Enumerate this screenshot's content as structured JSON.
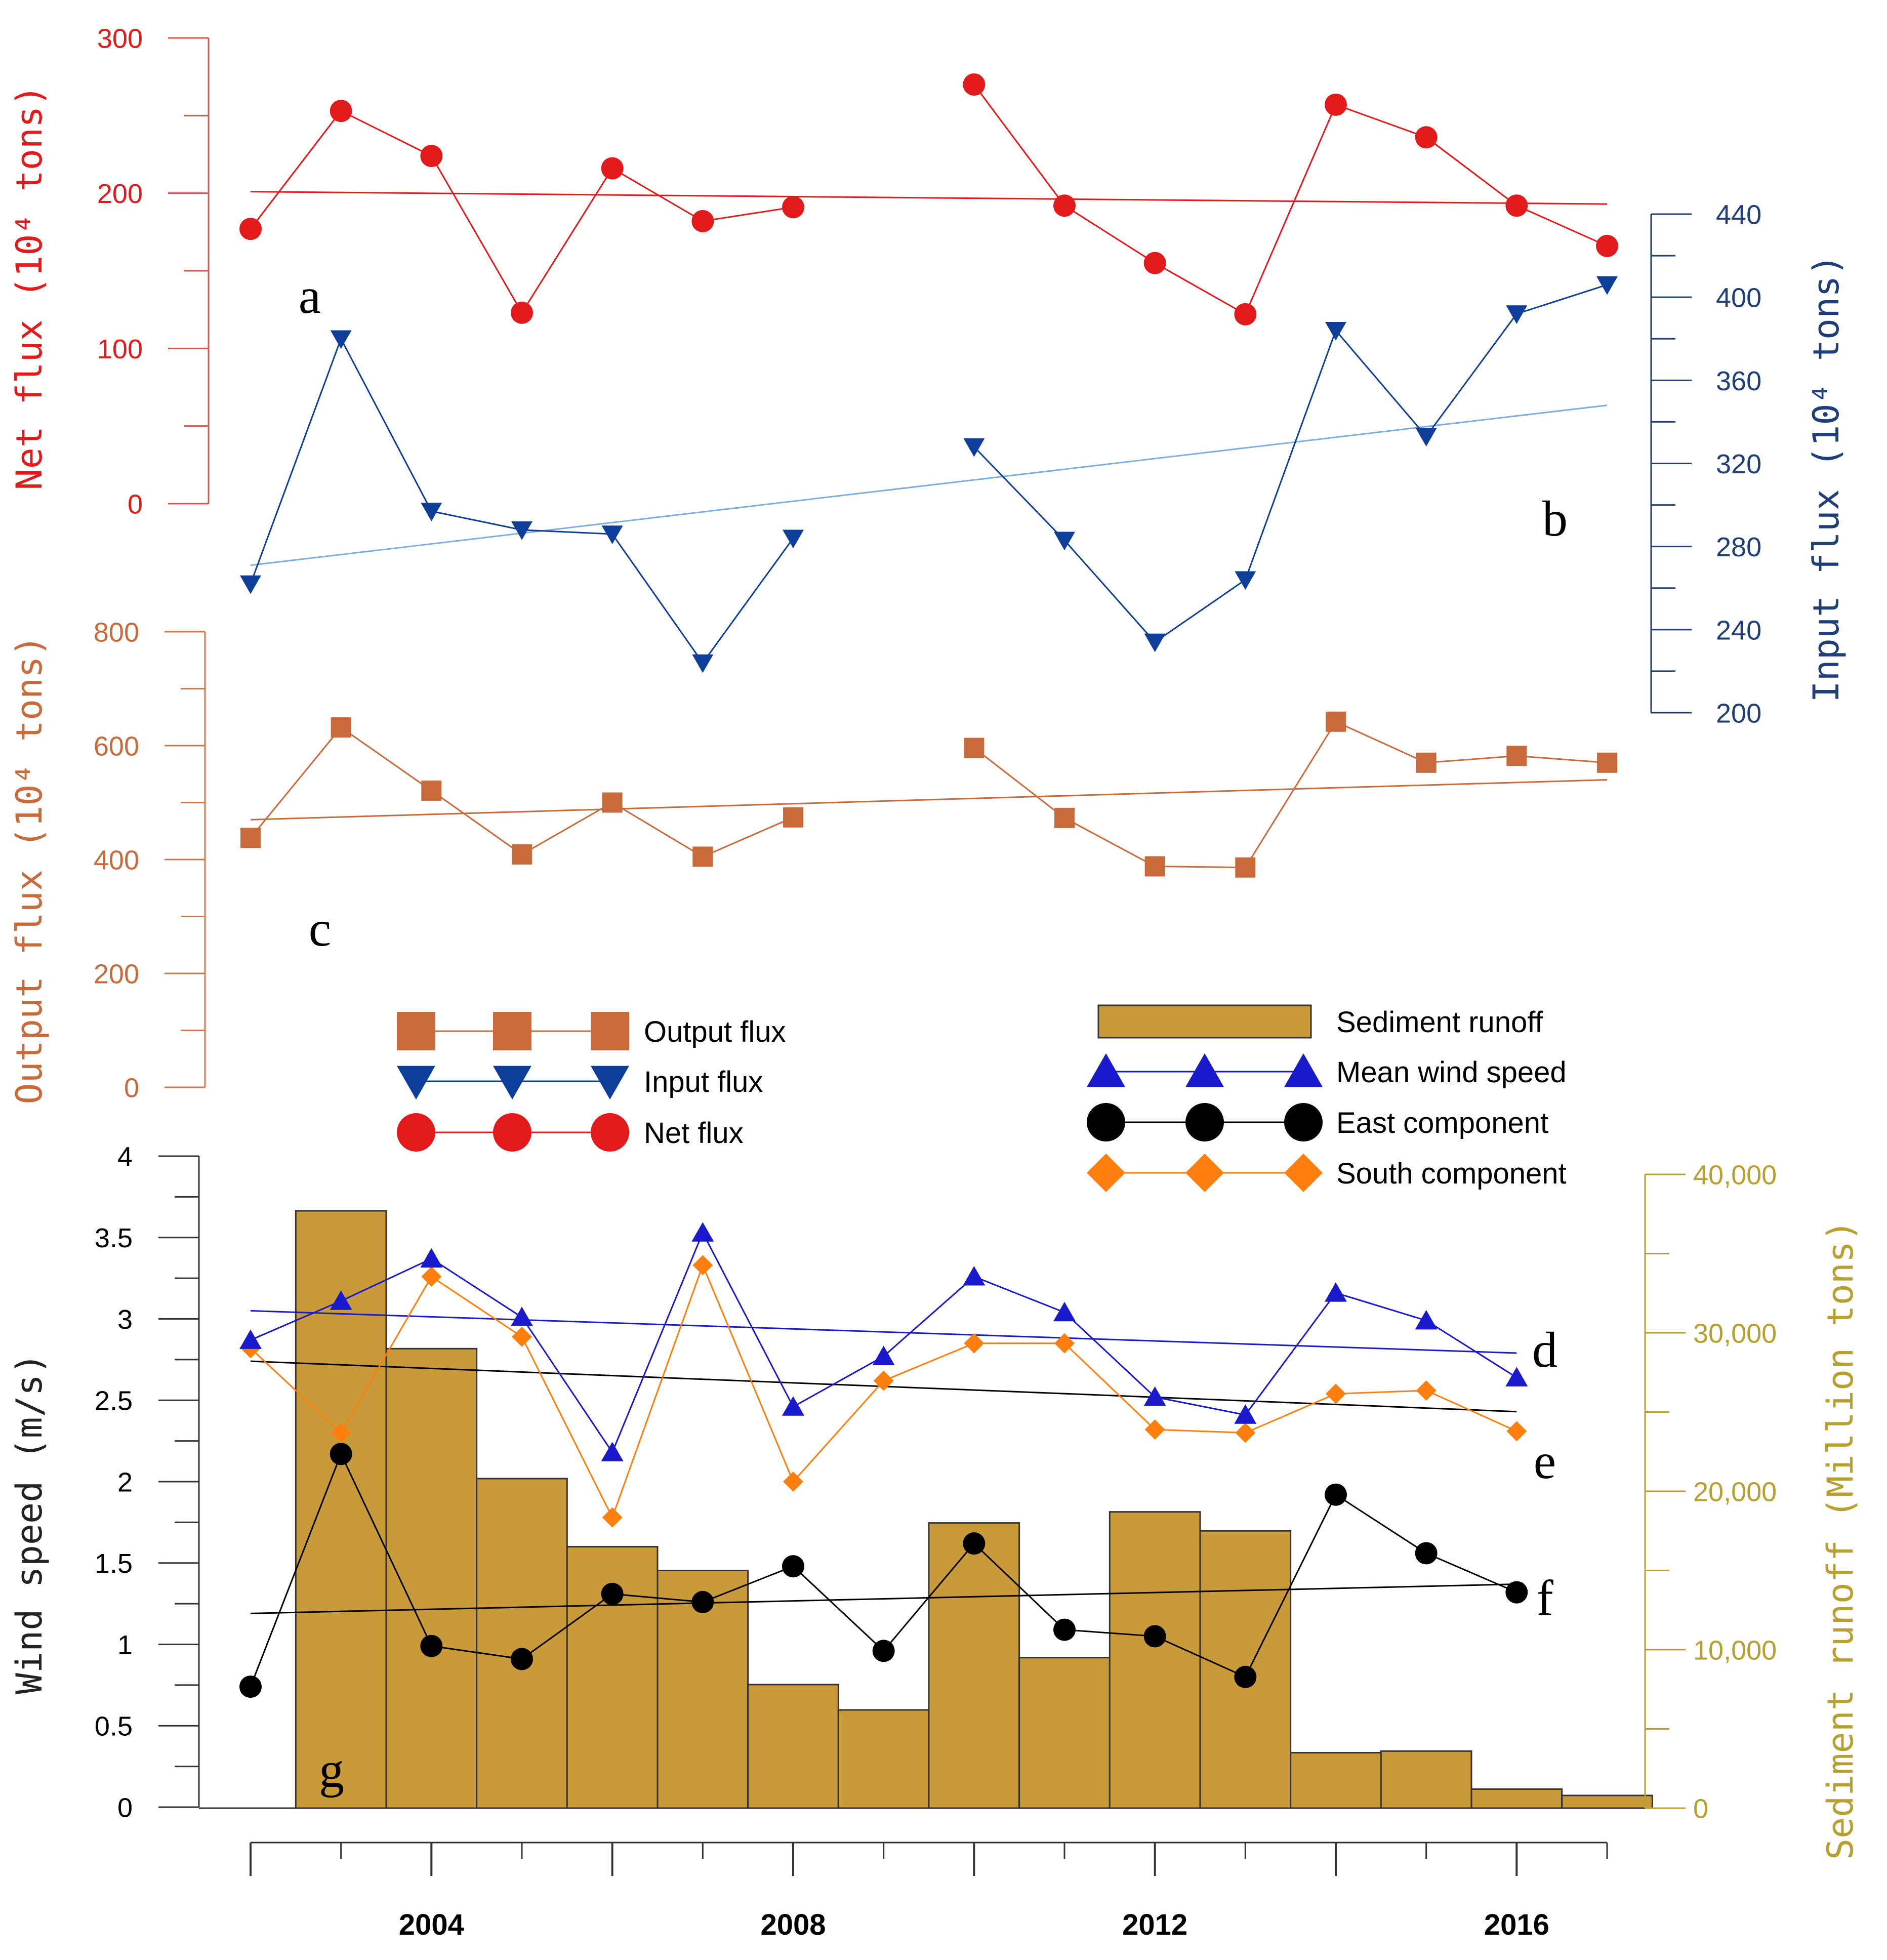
{
  "chart_data": {
    "type": "line",
    "years": [
      2002,
      2003,
      2004,
      2005,
      2006,
      2007,
      2008,
      2009,
      2010,
      2011,
      2012,
      2013,
      2014,
      2015,
      2016,
      2017
    ],
    "xlim": [
      2002,
      2017
    ],
    "x_tick_labels": [
      "2004",
      "2008",
      "2012",
      "2016"
    ],
    "x_major_ticks": [
      2002,
      2004,
      2006,
      2008,
      2010,
      2012,
      2014,
      2016
    ],
    "colors": {
      "net": "#e31a1c",
      "net_axis": "#d9534f",
      "input": "#0d3f9a",
      "input_axis": "#1f3f7a",
      "input_trend": "#7eaee0",
      "output": "#c86a3a",
      "output_axis": "#c87a50",
      "wind": "#1a1acc",
      "east": "#000000",
      "south": "#ff7f0e",
      "sediment": "#c99a3a",
      "sediment_edge": "#333333",
      "sediment_axis": "#b8a030"
    },
    "panels": {
      "net": {
        "label": "a",
        "ylabel": "Net flux (10⁴ tons)",
        "ylim": [
          0,
          300
        ],
        "tick_labels": [
          "0",
          "100",
          "200",
          "300"
        ],
        "tick_values": [
          0,
          100,
          200,
          300
        ],
        "series": [
          {
            "name": "Net flux",
            "points": [
              [
                2002,
                177
              ],
              [
                2003,
                253
              ],
              [
                2004,
                224
              ],
              [
                2005,
                123
              ],
              [
                2006,
                216
              ],
              [
                2007,
                182
              ],
              [
                2008,
                191
              ]
            ]
          },
          {
            "name": "Net flux",
            "points": [
              [
                2010,
                270
              ],
              [
                2011,
                192
              ],
              [
                2012,
                155
              ],
              [
                2013,
                122
              ],
              [
                2014,
                257
              ],
              [
                2015,
                236
              ],
              [
                2016,
                192
              ],
              [
                2017,
                166
              ]
            ]
          }
        ],
        "trend": [
          [
            2002,
            201
          ],
          [
            2017,
            193
          ]
        ]
      },
      "input": {
        "label": "b",
        "ylabel": "Input flux (10⁴ tons)",
        "ylim": [
          200,
          440
        ],
        "tick_labels": [
          "200",
          "240",
          "280",
          "320",
          "360",
          "400",
          "440"
        ],
        "tick_values": [
          200,
          240,
          280,
          320,
          360,
          400,
          440
        ],
        "series": [
          {
            "name": "Input flux",
            "points": [
              [
                2002,
                262
              ],
              [
                2003,
                380
              ],
              [
                2004,
                297
              ],
              [
                2005,
                288
              ],
              [
                2006,
                286
              ],
              [
                2007,
                224
              ],
              [
                2008,
                284
              ]
            ]
          },
          {
            "name": "Input flux",
            "points": [
              [
                2010,
                328
              ],
              [
                2011,
                283
              ],
              [
                2012,
                234
              ],
              [
                2013,
                264
              ],
              [
                2014,
                384
              ],
              [
                2015,
                333
              ],
              [
                2016,
                392
              ],
              [
                2017,
                406
              ]
            ]
          }
        ],
        "trend": [
          [
            2002,
            271
          ],
          [
            2017,
            348
          ]
        ]
      },
      "output": {
        "label": "c",
        "ylabel": "Output flux (10⁴ tons)",
        "ylim": [
          0,
          800
        ],
        "tick_labels": [
          "0",
          "200",
          "400",
          "600",
          "800"
        ],
        "tick_values": [
          0,
          200,
          400,
          600,
          800
        ],
        "series": [
          {
            "name": "Output flux",
            "points": [
              [
                2002,
                438
              ],
              [
                2003,
                632
              ],
              [
                2004,
                521
              ],
              [
                2005,
                409
              ],
              [
                2006,
                500
              ],
              [
                2007,
                405
              ],
              [
                2008,
                474
              ]
            ]
          },
          {
            "name": "Output flux",
            "points": [
              [
                2010,
                596
              ],
              [
                2011,
                473
              ],
              [
                2012,
                388
              ],
              [
                2013,
                386
              ],
              [
                2014,
                642
              ],
              [
                2015,
                570
              ],
              [
                2016,
                582
              ],
              [
                2017,
                570
              ]
            ]
          }
        ],
        "trend": [
          [
            2002,
            470
          ],
          [
            2017,
            540
          ]
        ]
      },
      "wind": {
        "ylabel": "Wind speed (m/s)",
        "ylim": [
          0,
          4
        ],
        "tick_labels": [
          "0",
          "0.5",
          "1",
          "1.5",
          "2",
          "2.5",
          "3",
          "3.5",
          "4"
        ],
        "tick_values": [
          0,
          0.5,
          1,
          1.5,
          2,
          2.5,
          3,
          3.5,
          4
        ],
        "series": [
          {
            "name": "Mean wind speed",
            "label": "d",
            "points": [
              [
                2002,
                2.87
              ],
              [
                2003,
                3.11
              ],
              [
                2004,
                3.37
              ],
              [
                2005,
                3.01
              ],
              [
                2006,
                2.18
              ],
              [
                2007,
                3.53
              ],
              [
                2008,
                2.46
              ],
              [
                2009,
                2.77
              ],
              [
                2010,
                3.26
              ],
              [
                2011,
                3.04
              ],
              [
                2012,
                2.52
              ],
              [
                2013,
                2.41
              ],
              [
                2014,
                3.16
              ],
              [
                2015,
                2.99
              ],
              [
                2016,
                2.64
              ]
            ],
            "trend": [
              [
                2002,
                3.05
              ],
              [
                2016,
                2.79
              ]
            ]
          },
          {
            "name": "South component",
            "label": "e",
            "points": [
              [
                2002,
                2.82
              ],
              [
                2003,
                2.3
              ],
              [
                2004,
                3.26
              ],
              [
                2005,
                2.89
              ],
              [
                2006,
                1.78
              ],
              [
                2007,
                3.33
              ],
              [
                2008,
                2.0
              ],
              [
                2009,
                2.62
              ],
              [
                2010,
                2.85
              ],
              [
                2011,
                2.85
              ],
              [
                2012,
                2.32
              ],
              [
                2013,
                2.3
              ],
              [
                2014,
                2.54
              ],
              [
                2015,
                2.56
              ],
              [
                2016,
                2.31
              ]
            ]
          },
          {
            "name": "East component",
            "label": "f",
            "points": [
              [
                2002,
                0.74
              ],
              [
                2003,
                2.17
              ],
              [
                2004,
                0.99
              ],
              [
                2005,
                0.91
              ],
              [
                2006,
                1.31
              ],
              [
                2007,
                1.26
              ],
              [
                2008,
                1.48
              ],
              [
                2009,
                0.96
              ],
              [
                2010,
                1.62
              ],
              [
                2011,
                1.09
              ],
              [
                2012,
                1.05
              ],
              [
                2013,
                0.8
              ],
              [
                2014,
                1.92
              ],
              [
                2015,
                1.56
              ],
              [
                2016,
                1.32
              ]
            ],
            "trend": [
              [
                2002,
                1.19
              ],
              [
                2016,
                1.37
              ]
            ]
          }
        ],
        "black_trend": [
          [
            2002,
            2.74
          ],
          [
            2016,
            2.43
          ]
        ]
      },
      "sediment": {
        "label": "g",
        "ylabel": "Sediment runoff (Million tons)",
        "ylim": [
          0,
          40000
        ],
        "tick_labels": [
          "0",
          "10,000",
          "20,000",
          "30,000",
          "40,000"
        ],
        "tick_values": [
          0,
          10000,
          20000,
          30000,
          40000
        ],
        "bar_width_years": 1,
        "bars": [
          {
            "x": 2003,
            "value": 37700
          },
          {
            "x": 2004,
            "value": 29000
          },
          {
            "x": 2005,
            "value": 20800
          },
          {
            "x": 2006,
            "value": 16500
          },
          {
            "x": 2007,
            "value": 15000
          },
          {
            "x": 2008,
            "value": 7800
          },
          {
            "x": 2009,
            "value": 6200
          },
          {
            "x": 2010,
            "value": 18000
          },
          {
            "x": 2011,
            "value": 9500
          },
          {
            "x": 2012,
            "value": 18700
          },
          {
            "x": 2013,
            "value": 17500
          },
          {
            "x": 2014,
            "value": 3500
          },
          {
            "x": 2015,
            "value": 3600
          },
          {
            "x": 2016,
            "value": 1200
          },
          {
            "x": 2017,
            "value": 800
          }
        ]
      }
    },
    "legend_left": [
      {
        "label": "Output flux",
        "marker": "square",
        "color": "#c86a3a"
      },
      {
        "label": "Input flux",
        "marker": "triangle-down",
        "color": "#0d3f9a"
      },
      {
        "label": "Net flux",
        "marker": "circle",
        "color": "#e31a1c"
      }
    ],
    "legend_right": [
      {
        "label": "Sediment runoff",
        "marker": "bar",
        "color": "#c99a3a"
      },
      {
        "label": "Mean wind speed",
        "marker": "triangle-up",
        "color": "#1a1acc"
      },
      {
        "label": "East component",
        "marker": "circle",
        "color": "#000000"
      },
      {
        "label": "South component",
        "marker": "diamond",
        "color": "#ff7f0e"
      }
    ]
  }
}
